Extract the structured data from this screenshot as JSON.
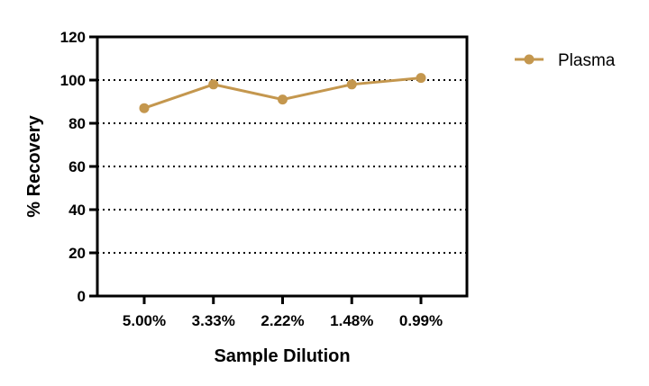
{
  "chart_data": {
    "type": "line",
    "categories": [
      "5.00%",
      "3.33%",
      "2.22%",
      "1.48%",
      "0.99%"
    ],
    "series": [
      {
        "name": "Plasma",
        "values": [
          87,
          98,
          91,
          98,
          101
        ],
        "color": "#C4974E"
      }
    ],
    "xlabel": "Sample Dilution",
    "ylabel": "% Recovery",
    "ylim": [
      0,
      120
    ],
    "yticks": [
      0,
      20,
      40,
      60,
      80,
      100,
      120
    ],
    "grid": "horizontal-dotted",
    "legend_position": "top-right"
  }
}
